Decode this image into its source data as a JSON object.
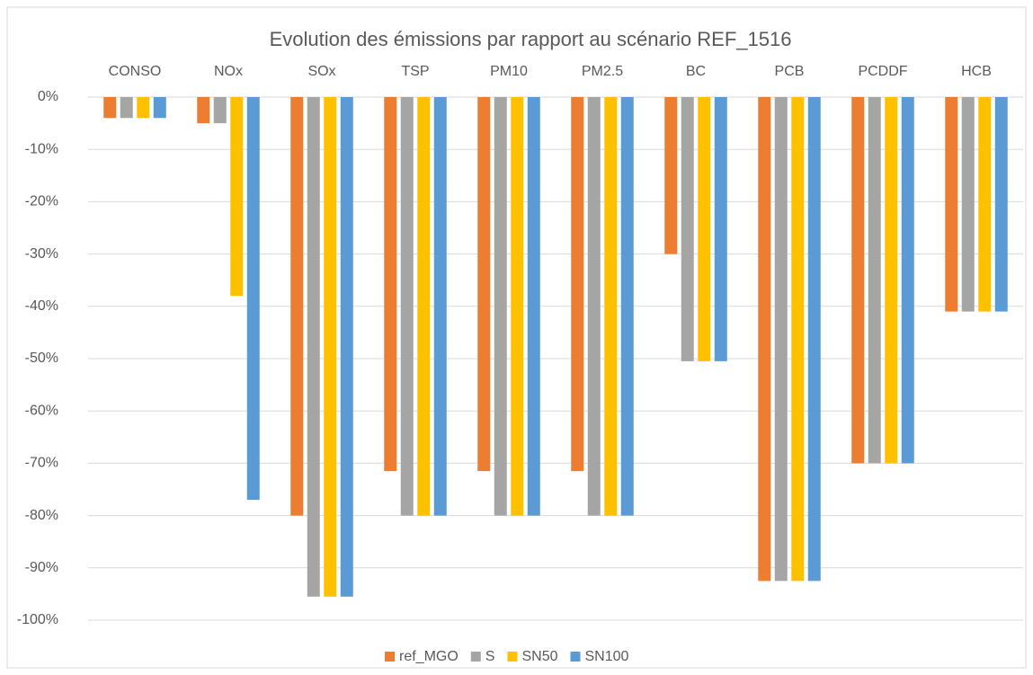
{
  "chart_data": {
    "type": "bar",
    "title": "Evolution des émissions par rapport au scénario REF_1516",
    "categories": [
      "CONSO",
      "NOx",
      "SOx",
      "TSP",
      "PM10",
      "PM2.5",
      "BC",
      "PCB",
      "PCDDF",
      "HCB"
    ],
    "series": [
      {
        "name": "ref_MGO",
        "color": "#ed7d31",
        "values": [
          -4,
          -5,
          -80,
          -71.5,
          -71.5,
          -71.5,
          -30,
          -92.5,
          -70,
          -41
        ]
      },
      {
        "name": "S",
        "color": "#a5a5a5",
        "values": [
          -4,
          -5,
          -95.5,
          -80,
          -80,
          -80,
          -50.5,
          -92.5,
          -70,
          -41
        ]
      },
      {
        "name": "SN50",
        "color": "#ffc000",
        "values": [
          -4,
          -38,
          -95.5,
          -80,
          -80,
          -80,
          -50.5,
          -92.5,
          -70,
          -41
        ]
      },
      {
        "name": "SN100",
        "color": "#5b9bd5",
        "values": [
          -4,
          -77,
          -95.5,
          -80,
          -80,
          -80,
          -50.5,
          -92.5,
          -70,
          -41
        ]
      }
    ],
    "ylim": [
      -100,
      0
    ],
    "yticks": [
      {
        "value": 0,
        "label": "0%"
      },
      {
        "value": -10,
        "label": "-10%"
      },
      {
        "value": -20,
        "label": "-20%"
      },
      {
        "value": -30,
        "label": "-30%"
      },
      {
        "value": -40,
        "label": "-40%"
      },
      {
        "value": -50,
        "label": "-50%"
      },
      {
        "value": -60,
        "label": "-60%"
      },
      {
        "value": -70,
        "label": "-70%"
      },
      {
        "value": -80,
        "label": "-80%"
      },
      {
        "value": -90,
        "label": "-90%"
      },
      {
        "value": -100,
        "label": "-100%"
      }
    ],
    "grid": true,
    "legend": "bottom"
  }
}
